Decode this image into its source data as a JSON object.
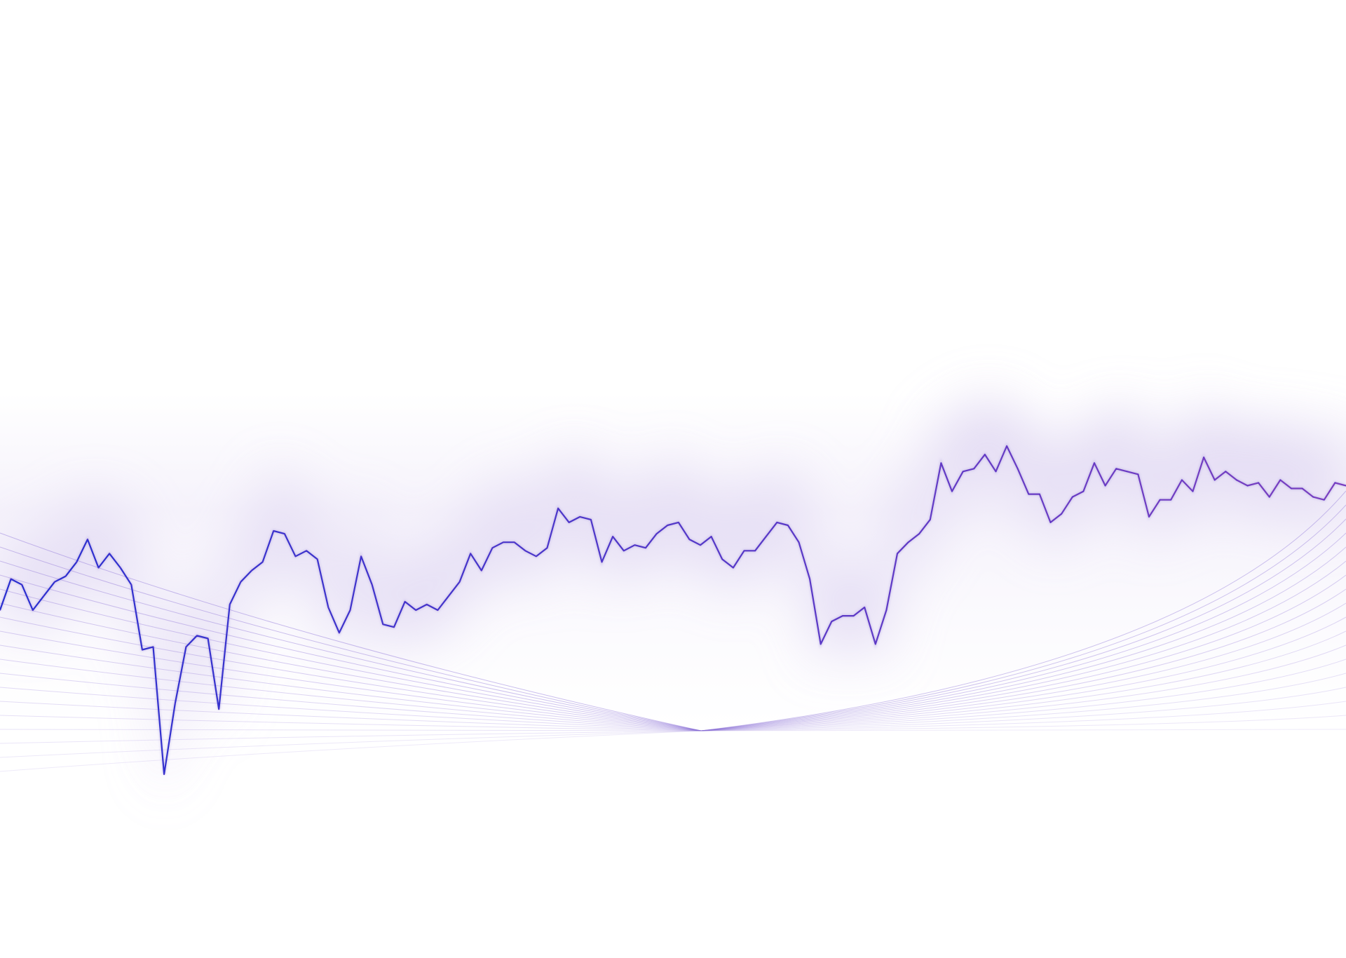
{
  "chart_data": {
    "type": "line",
    "title": "",
    "xlabel": "",
    "ylabel": "",
    "grid": false,
    "legend": "none",
    "axes_visible": false,
    "series": [
      {
        "values": [
          56,
          67,
          65,
          56,
          61,
          66,
          68,
          73,
          81,
          71,
          76,
          71,
          65,
          42,
          43,
          -2,
          23,
          43,
          47,
          46,
          21,
          58,
          66,
          70,
          73,
          84,
          83,
          75,
          77,
          74,
          57,
          48,
          56,
          75,
          65,
          51,
          50,
          59,
          56,
          58,
          56,
          61,
          66,
          76,
          70,
          78,
          80,
          80,
          77,
          75,
          78,
          92,
          87,
          89,
          88,
          73,
          82,
          77,
          79,
          78,
          83,
          86,
          87,
          81,
          79,
          82,
          74,
          71,
          77,
          77,
          82,
          87,
          86,
          80,
          67,
          44,
          52,
          54,
          54,
          57,
          44,
          56,
          76,
          80,
          83,
          88,
          108,
          98,
          105,
          106,
          111,
          105,
          114,
          106,
          97,
          97,
          87,
          90,
          96,
          98,
          108,
          100,
          106,
          105,
          104,
          89,
          95,
          95,
          102,
          98,
          110,
          102,
          105,
          102,
          100,
          101,
          96,
          102,
          99,
          99,
          96,
          95,
          101,
          100
        ]
      }
    ]
  },
  "colors": {
    "background": "#ffffff",
    "line_start": "#2a2fd0",
    "line_end": "#7a3fc0",
    "glow": "#d8cdef",
    "decor_lines": "#8a6fd6"
  }
}
